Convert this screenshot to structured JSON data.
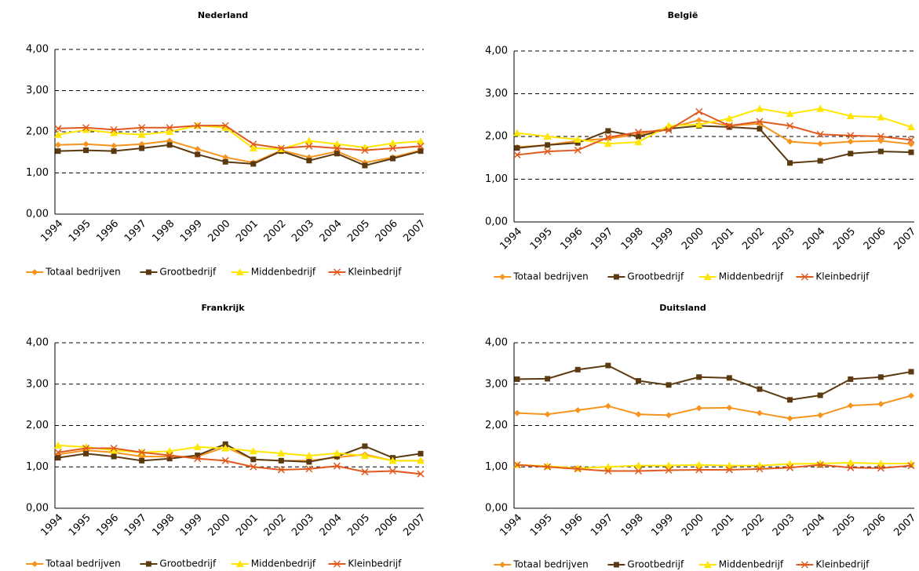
{
  "chart_data": [
    {
      "type": "line",
      "title": "Nederland",
      "categories": [
        "1994",
        "1995",
        "1996",
        "1997",
        "1998",
        "1999",
        "2000",
        "2001",
        "2002",
        "2003",
        "2004",
        "2005",
        "2006",
        "2007"
      ],
      "ylim": [
        0,
        4
      ],
      "yticks": [
        {
          "value": 0,
          "label": "0,00"
        },
        {
          "value": 1,
          "label": "1,00"
        },
        {
          "value": 2,
          "label": "2,00"
        },
        {
          "value": 3,
          "label": "3,00"
        },
        {
          "value": 4,
          "label": "4,00"
        }
      ],
      "grid": true,
      "series": [
        {
          "name": "Totaal bedrijven",
          "color": "#F7941D",
          "marker": "diamond",
          "values": [
            1.68,
            1.7,
            1.66,
            1.7,
            1.78,
            1.58,
            1.38,
            1.25,
            1.55,
            1.38,
            1.52,
            1.25,
            1.38,
            1.55
          ]
        },
        {
          "name": "Grootbedrijf",
          "color": "#5C3A11",
          "marker": "square",
          "values": [
            1.53,
            1.55,
            1.53,
            1.6,
            1.68,
            1.45,
            1.27,
            1.22,
            1.53,
            1.3,
            1.47,
            1.18,
            1.35,
            1.53
          ]
        },
        {
          "name": "Middenbedrijf",
          "color": "#FFE600",
          "marker": "triangle",
          "values": [
            1.93,
            2.05,
            1.97,
            1.93,
            2.0,
            2.15,
            2.1,
            1.6,
            1.58,
            1.78,
            1.7,
            1.62,
            1.72,
            1.77
          ]
        },
        {
          "name": "Kleinbedrijf",
          "color": "#E05A1E",
          "marker": "x",
          "values": [
            2.08,
            2.1,
            2.05,
            2.1,
            2.1,
            2.15,
            2.15,
            1.7,
            1.6,
            1.65,
            1.6,
            1.55,
            1.6,
            1.65
          ]
        }
      ]
    },
    {
      "type": "line",
      "title": "België",
      "categories": [
        "1994",
        "1995",
        "1996",
        "1997",
        "1998",
        "1999",
        "2000",
        "2001",
        "2002",
        "2003",
        "2004",
        "2005",
        "2006",
        "2007"
      ],
      "ylim": [
        0,
        4
      ],
      "yticks": [
        {
          "value": 0,
          "label": "0,00"
        },
        {
          "value": 1,
          "label": "1,00"
        },
        {
          "value": 2,
          "label": "2,00"
        },
        {
          "value": 3,
          "label": "3,00"
        },
        {
          "value": 4,
          "label": "4,00"
        }
      ],
      "grid": true,
      "series": [
        {
          "name": "Totaal bedrijven",
          "color": "#F7941D",
          "marker": "diamond",
          "values": [
            1.75,
            1.8,
            1.9,
            1.95,
            2.05,
            2.2,
            2.38,
            2.25,
            2.3,
            1.88,
            1.83,
            1.88,
            1.9,
            1.82
          ]
        },
        {
          "name": "Grootbedrijf",
          "color": "#5C3A11",
          "marker": "square",
          "values": [
            1.73,
            1.8,
            1.85,
            2.13,
            2.0,
            2.18,
            2.25,
            2.22,
            2.18,
            1.38,
            1.43,
            1.6,
            1.65,
            1.63
          ]
        },
        {
          "name": "Middenbedrijf",
          "color": "#FFE600",
          "marker": "triangle",
          "values": [
            2.08,
            2.0,
            1.93,
            1.83,
            1.87,
            2.25,
            2.28,
            2.42,
            2.65,
            2.53,
            2.65,
            2.48,
            2.45,
            2.22
          ]
        },
        {
          "name": "Kleinbedrijf",
          "color": "#E05A1E",
          "marker": "x",
          "values": [
            1.57,
            1.65,
            1.68,
            1.98,
            2.1,
            2.15,
            2.58,
            2.25,
            2.35,
            2.25,
            2.05,
            2.02,
            2.0,
            1.92
          ]
        }
      ]
    },
    {
      "type": "line",
      "title": "Frankrijk",
      "categories": [
        "1994",
        "1995",
        "1996",
        "1997",
        "1998",
        "1999",
        "2000",
        "2001",
        "2002",
        "2003",
        "2004",
        "2005",
        "2006",
        "2007"
      ],
      "ylim": [
        0,
        4
      ],
      "yticks": [
        {
          "value": 0,
          "label": "0,00"
        },
        {
          "value": 1,
          "label": "1,00"
        },
        {
          "value": 2,
          "label": "2,00"
        },
        {
          "value": 3,
          "label": "3,00"
        },
        {
          "value": 4,
          "label": "4,00"
        }
      ],
      "grid": true,
      "series": [
        {
          "name": "Totaal bedrijven",
          "color": "#F7941D",
          "marker": "diamond",
          "values": [
            1.3,
            1.4,
            1.35,
            1.25,
            1.25,
            1.25,
            1.48,
            1.18,
            1.15,
            1.15,
            1.23,
            1.3,
            1.15,
            1.15
          ]
        },
        {
          "name": "Grootbedrijf",
          "color": "#5C3A11",
          "marker": "square",
          "values": [
            1.22,
            1.32,
            1.25,
            1.15,
            1.2,
            1.28,
            1.55,
            1.18,
            1.15,
            1.12,
            1.25,
            1.5,
            1.22,
            1.32
          ]
        },
        {
          "name": "Middenbedrijf",
          "color": "#FFE600",
          "marker": "triangle",
          "values": [
            1.52,
            1.48,
            1.4,
            1.35,
            1.38,
            1.48,
            1.45,
            1.38,
            1.33,
            1.27,
            1.33,
            1.27,
            1.15,
            1.15
          ]
        },
        {
          "name": "Kleinbedrijf",
          "color": "#E05A1E",
          "marker": "x",
          "values": [
            1.35,
            1.45,
            1.45,
            1.35,
            1.28,
            1.2,
            1.15,
            1.0,
            0.93,
            0.95,
            1.02,
            0.88,
            0.9,
            0.83
          ]
        }
      ]
    },
    {
      "type": "line",
      "title": "Duitsland",
      "categories": [
        "1994",
        "1995",
        "1996",
        "1997",
        "1998",
        "1999",
        "2000",
        "2001",
        "2002",
        "2003",
        "2004",
        "2005",
        "2006",
        "2007"
      ],
      "ylim": [
        0,
        4
      ],
      "yticks": [
        {
          "value": 0,
          "label": "0,00"
        },
        {
          "value": 1,
          "label": "1,00"
        },
        {
          "value": 2,
          "label": "2,00"
        },
        {
          "value": 3,
          "label": "3,00"
        },
        {
          "value": 4,
          "label": "4,00"
        }
      ],
      "grid": true,
      "series": [
        {
          "name": "Totaal bedrijven",
          "color": "#F7941D",
          "marker": "diamond",
          "values": [
            2.3,
            2.27,
            2.37,
            2.47,
            2.27,
            2.25,
            2.42,
            2.43,
            2.3,
            2.17,
            2.25,
            2.48,
            2.52,
            2.72
          ]
        },
        {
          "name": "Grootbedrijf",
          "color": "#5C3A11",
          "marker": "square",
          "values": [
            3.12,
            3.13,
            3.35,
            3.45,
            3.08,
            2.98,
            3.17,
            3.15,
            2.88,
            2.62,
            2.73,
            3.12,
            3.17,
            3.3
          ]
        },
        {
          "name": "Middenbedrijf",
          "color": "#FFE600",
          "marker": "triangle",
          "values": [
            1.05,
            1.02,
            0.97,
            1.0,
            1.03,
            1.03,
            1.05,
            1.03,
            1.03,
            1.07,
            1.08,
            1.1,
            1.08,
            1.08
          ]
        },
        {
          "name": "Kleinbedrijf",
          "color": "#E05A1E",
          "marker": "x",
          "values": [
            1.05,
            1.0,
            0.95,
            0.9,
            0.9,
            0.92,
            0.93,
            0.93,
            0.95,
            0.98,
            1.05,
            0.98,
            0.97,
            1.03
          ]
        }
      ]
    }
  ]
}
